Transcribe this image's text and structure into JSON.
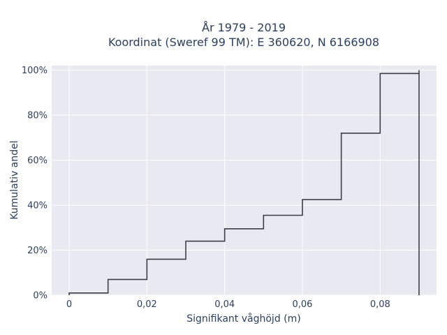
{
  "chart_data": {
    "type": "line",
    "title": "År 1979 - 2019",
    "subtitle": "Koordinat (Sweref 99 TM): E 360620, N 6166908",
    "xlabel": "Signifikant våghöjd (m)",
    "ylabel": "Kumulativ andel",
    "xlim": [
      -0.0045,
      0.0945
    ],
    "ylim": [
      0,
      1.02
    ],
    "x_ticks": [
      0,
      0.02,
      0.04,
      0.06,
      0.08
    ],
    "x_tick_labels": [
      "0",
      "0,02",
      "0,04",
      "0,06",
      "0,08"
    ],
    "y_ticks": [
      0,
      0.2,
      0.4,
      0.6,
      0.8,
      1.0
    ],
    "y_tick_labels": [
      "0%",
      "20%",
      "40%",
      "60%",
      "80%",
      "100%"
    ],
    "grid": true,
    "line_shape": "step",
    "series": [
      {
        "x": [
          0,
          0.01,
          0.02,
          0.03,
          0.04,
          0.05,
          0.06,
          0.07,
          0.08,
          0.09
        ],
        "values": [
          0.01,
          0.07,
          0.16,
          0.24,
          0.295,
          0.355,
          0.425,
          0.72,
          0.985,
          1.0
        ]
      }
    ],
    "colors": {
      "line": "#3b4048",
      "plot_bg": "#e8e9f1",
      "grid": "#ffffff",
      "text": "#2a3f5f"
    }
  }
}
